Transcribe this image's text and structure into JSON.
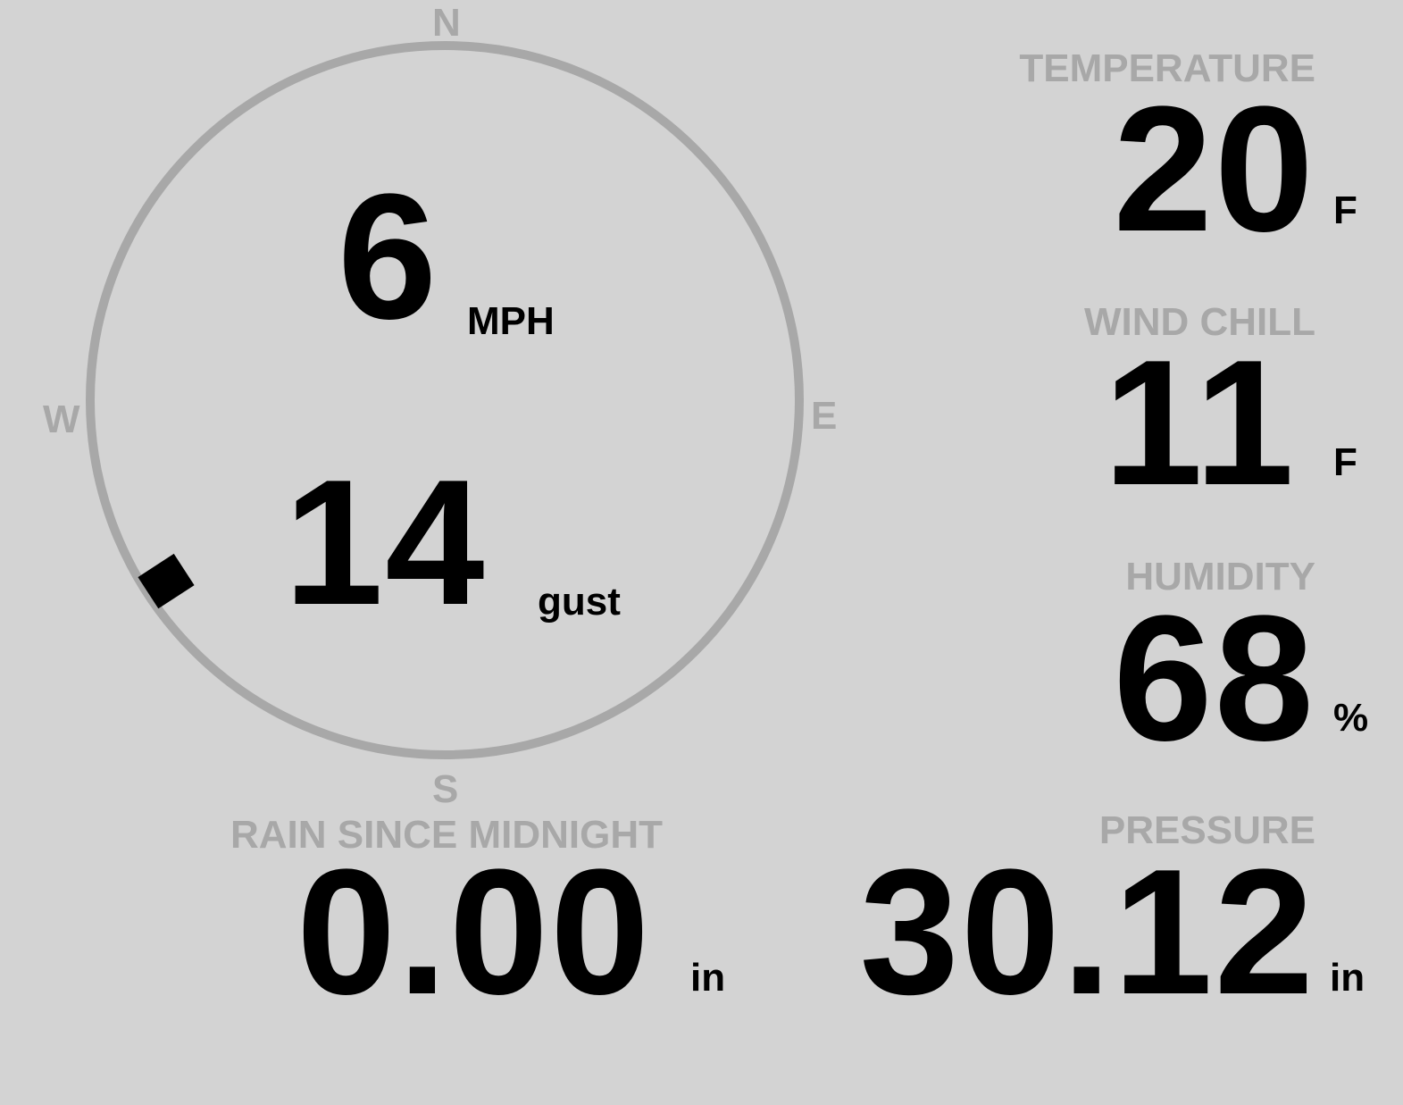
{
  "wind": {
    "compass": {
      "n": "N",
      "e": "E",
      "s": "S",
      "w": "W"
    },
    "speed": "6",
    "speed_unit": "MPH",
    "gust": "14",
    "gust_unit": "gust",
    "direction_degrees": 237
  },
  "temperature": {
    "label": "TEMPERATURE",
    "value": "20",
    "unit": "F"
  },
  "wind_chill": {
    "label": "WIND CHILL",
    "value": "11",
    "unit": "F"
  },
  "humidity": {
    "label": "HUMIDITY",
    "value": "68",
    "unit": "%"
  },
  "rain": {
    "label": "RAIN SINCE MIDNIGHT",
    "value": "0.00",
    "unit": "in"
  },
  "pressure": {
    "label": "PRESSURE",
    "value": "30.12",
    "unit": "in"
  },
  "colors": {
    "background": "#d3d3d3",
    "ring": "#a8a8a8",
    "label": "#a8a8a8",
    "value": "#000000"
  }
}
